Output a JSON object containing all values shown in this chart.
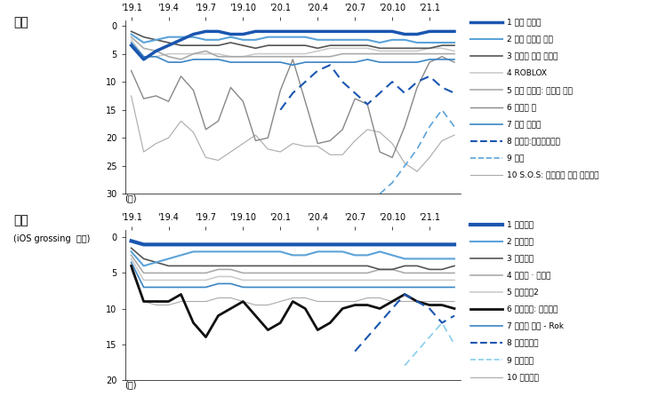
{
  "title_us": "미국",
  "title_cn": "중국",
  "subtitle_cn": "(iOS grossing  기준)",
  "xtick_labels": [
    "'19.1",
    "'19.4",
    "'19.7",
    "'19.10",
    "'20.1",
    "'20.4",
    "'20.7",
    "'20.10",
    "'21.1"
  ],
  "us_legend": [
    "1 코인 마스터",
    "2 캔디 크러시 사가",
    "3 가레나 프리 파이어",
    "4 ROBLOX",
    "5 로드 모바일: 제국의 전쟁",
    "6 포켓몬 고",
    "7 빙고 블리츠",
    "8 레이드:새도우레전드",
    "9 원신",
    "10 S.O.S: 스테이트 오브 서바이벌"
  ],
  "cn_legend": [
    "1 왕자영요",
    "2 화평정영",
    "3 몽환서유",
    "4 삼국지 · 전략판",
    "5 전민기적2",
    "6 투라대륙: 무혼교성",
    "7 만국의 각성 - Rok",
    "8 천애명월도",
    "9 일념소요",
    "10 슬토지빈"
  ],
  "colors": {
    "dark_blue": "#1A56B0",
    "light_blue": "#5BA3D9",
    "dark_gray": "#555555",
    "light_gray": "#AAAAAA",
    "very_light_gray": "#CCCCCC",
    "black": "#111111",
    "mid_blue": "#3A85C5",
    "pale_blue": "#87CEEB",
    "med_gray": "#888888"
  }
}
